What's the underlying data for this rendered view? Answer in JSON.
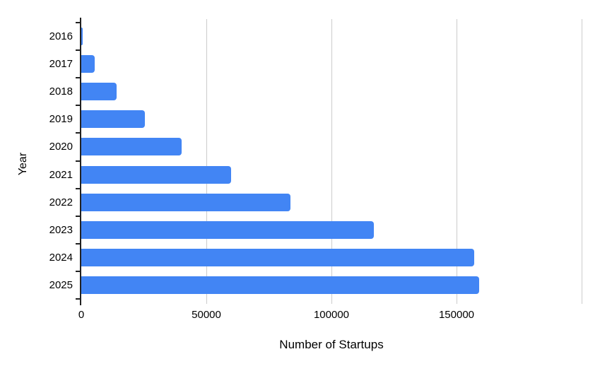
{
  "figure": {
    "background": "#ffffff"
  },
  "chart_data": {
    "type": "bar",
    "orientation": "horizontal",
    "title": "",
    "xlabel": "Number of Startups",
    "ylabel": "Year",
    "categories": [
      "2016",
      "2017",
      "2018",
      "2019",
      "2020",
      "2021",
      "2022",
      "2023",
      "2024",
      "2025"
    ],
    "values": [
      500,
      5500,
      14000,
      25500,
      40000,
      60000,
      83500,
      117000,
      157000,
      159000
    ],
    "xlim": [
      0,
      200000
    ],
    "xticks": [
      0,
      50000,
      100000,
      150000
    ],
    "xtick_labels": [
      "0",
      "50000",
      "100000",
      "150000"
    ],
    "gridlines": [
      50000,
      100000,
      150000,
      200000
    ],
    "grid": true,
    "legend": false,
    "bar_color": "#4285f4",
    "gridline_color": "#cccccc",
    "axis_color": "#212121",
    "text_color": "#000000"
  }
}
